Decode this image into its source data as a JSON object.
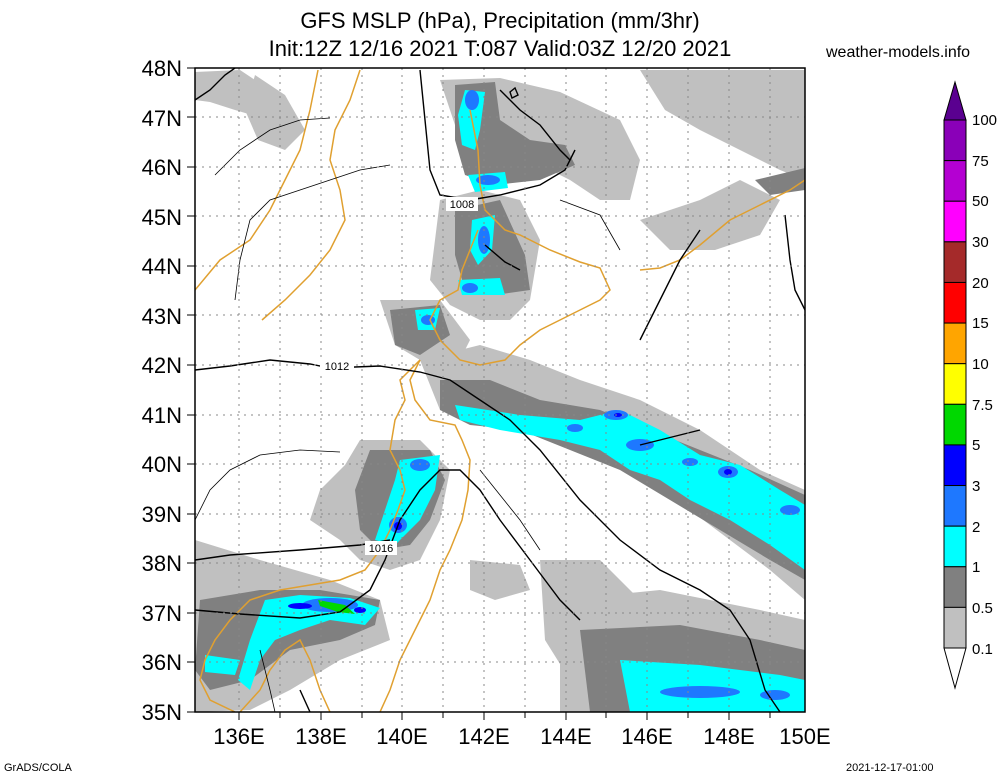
{
  "header": {
    "title_line1": "GFS MSLP (hPa), Precipitation (mm/3hr)",
    "title_line2": "Init:12Z 12/16 2021 T:087 Valid:03Z 12/20 2021",
    "site": "weather-models.info"
  },
  "footer": {
    "left": "GrADS/COLA",
    "right": "2021-12-17-01:00"
  },
  "map": {
    "lat_labels": [
      "48N",
      "47N",
      "46N",
      "45N",
      "44N",
      "43N",
      "42N",
      "41N",
      "40N",
      "39N",
      "38N",
      "37N",
      "36N",
      "35N"
    ],
    "lon_labels": [
      "136E",
      "138E",
      "140E",
      "142E",
      "144E",
      "146E",
      "148E",
      "150E"
    ],
    "isobar_labels": [
      "1008",
      "1012",
      "1016"
    ]
  },
  "colorbar": {
    "labels": [
      "100",
      "75",
      "50",
      "30",
      "20",
      "15",
      "10",
      "7.5",
      "5",
      "3",
      "2",
      "1",
      "0.5",
      "0.1"
    ],
    "colors": [
      "#8a00b8",
      "#b400d2",
      "#ff00ff",
      "#a52a2a",
      "#ff0000",
      "#ffa500",
      "#ffff00",
      "#00d800",
      "#0000ff",
      "#1e78ff",
      "#00ffff",
      "#808080",
      "#c0c0c0"
    ],
    "top_color": "#5a0090"
  },
  "palette": {
    "light": "#c0c0c0",
    "dark": "#808080",
    "cyan": "#00ffff",
    "blue": "#1e78ff",
    "deep_blue": "#0000ff",
    "green": "#00d800",
    "coast": "#e0a030",
    "grid": "#888888"
  }
}
